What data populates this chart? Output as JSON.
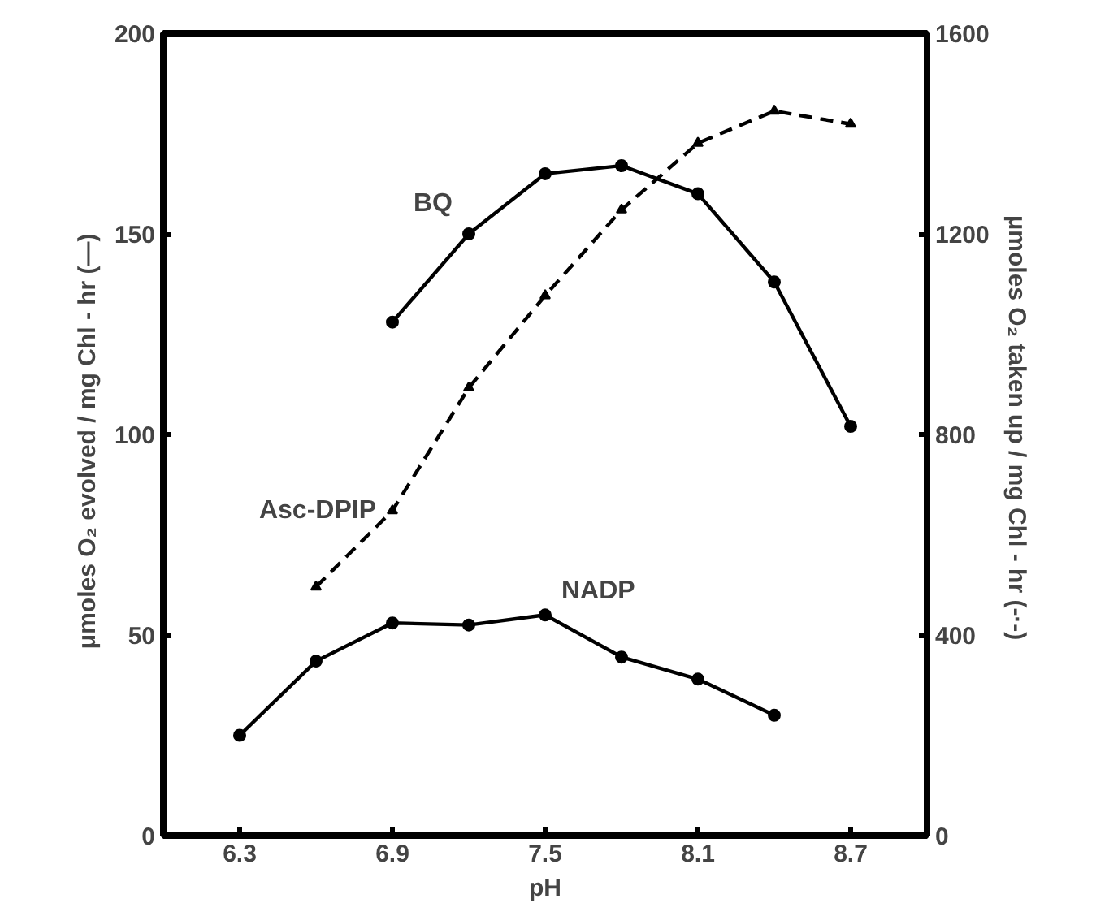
{
  "chart_data": {
    "type": "line",
    "xlabel": "pH",
    "ylabel": "μmoles O₂ evolved / mg Chl - hr   (—)",
    "y2label": "μmoles O₂ taken up / mg Chl - hr   (-·-)",
    "xlim": [
      6.0,
      9.0
    ],
    "xticks": [
      6.3,
      6.9,
      7.5,
      8.1,
      8.7
    ],
    "ylim": [
      0,
      200
    ],
    "yticks": [
      0,
      50,
      100,
      150,
      200
    ],
    "y2lim": [
      0,
      1600
    ],
    "y2ticks": [
      0,
      400,
      800,
      1200,
      1600
    ],
    "grid": false,
    "series": [
      {
        "name": "BQ",
        "color": "#000000",
        "marker": "circle",
        "line_style": "solid",
        "x": [
          6.9,
          7.2,
          7.5,
          7.8,
          8.1,
          8.4,
          8.7
        ],
        "values": [
          128,
          150,
          165,
          167,
          160,
          138,
          102
        ]
      },
      {
        "name": "Asc-DPIP",
        "color": "#000000",
        "marker": "triangle",
        "line_style": "dashed",
        "axis": "y2",
        "x": [
          6.6,
          6.9,
          7.2,
          7.5,
          7.8,
          8.1,
          8.4,
          8.7
        ],
        "values": [
          496,
          648,
          893,
          1077,
          1248,
          1381,
          1445,
          1419
        ]
      },
      {
        "name": "NADP",
        "color": "#000000",
        "marker": "circle",
        "line_style": "solid",
        "x": [
          6.3,
          6.6,
          6.9,
          7.2,
          7.5,
          7.8,
          8.1,
          8.4
        ],
        "values": [
          25,
          43.5,
          53,
          52.5,
          55,
          44.5,
          39,
          30
        ]
      }
    ]
  }
}
